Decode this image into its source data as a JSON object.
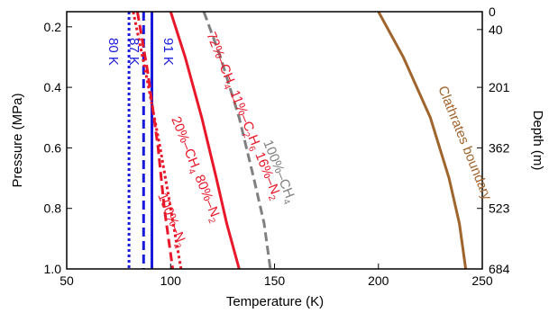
{
  "chart_data": {
    "type": "line",
    "xlabel": "Temperature (K)",
    "ylabel": "Pressure (MPa)",
    "ylabel_right": "Depth (m)",
    "xlim": [
      50,
      250
    ],
    "ylim": [
      0.15,
      1.0
    ],
    "x_ticks": [
      "50",
      "100",
      "150",
      "200",
      "250"
    ],
    "y_ticks": [
      "0.2",
      "0.4",
      "0.6",
      "0.8",
      "1.0"
    ],
    "right_ticks": [
      {
        "p": 0.15,
        "label": "0"
      },
      {
        "p": 0.209,
        "label": "40"
      },
      {
        "p": 0.4,
        "label": "201"
      },
      {
        "p": 0.6,
        "label": "362"
      },
      {
        "p": 0.8,
        "label": "523"
      },
      {
        "p": 1.0,
        "label": "684"
      }
    ],
    "series": [
      {
        "label": "80 K",
        "color": "#1a1adb",
        "dash": "dotted",
        "points": [
          [
            80,
            0.15
          ],
          [
            80,
            1.0
          ]
        ]
      },
      {
        "label": "87 K",
        "color": "#1a1adb",
        "dash": "dashed",
        "points": [
          [
            87,
            0.15
          ],
          [
            87,
            1.0
          ]
        ]
      },
      {
        "label": "91 K",
        "color": "#1a1adb",
        "dash": "solid",
        "points": [
          [
            91,
            0.15
          ],
          [
            91,
            1.0
          ]
        ]
      },
      {
        "label": "100%-N2",
        "color": "#e8182a",
        "dash": "dotted",
        "points": [
          [
            82,
            0.15
          ],
          [
            88,
            0.35
          ],
          [
            95,
            0.6
          ],
          [
            100,
            0.8
          ],
          [
            105,
            1.0
          ]
        ]
      },
      {
        "label": "20%-CH4 80%-N2",
        "color": "#e8182a",
        "dash": "dashed",
        "points": [
          [
            84,
            0.15
          ],
          [
            89,
            0.35
          ],
          [
            94,
            0.6
          ],
          [
            97,
            0.8
          ],
          [
            101,
            1.0
          ]
        ]
      },
      {
        "label": "72%-CH4 11%-C2H6 16%-N2",
        "color": "#e8182a",
        "dash": "solid",
        "points": [
          [
            100,
            0.15
          ],
          [
            107,
            0.3
          ],
          [
            115,
            0.5
          ],
          [
            122,
            0.7
          ],
          [
            127,
            0.85
          ],
          [
            133,
            1.0
          ]
        ]
      },
      {
        "label": "100%-CH4",
        "color": "#808080",
        "dash": "dashed",
        "points": [
          [
            116,
            0.15
          ],
          [
            124,
            0.3
          ],
          [
            133,
            0.5
          ],
          [
            140,
            0.7
          ],
          [
            145,
            0.85
          ],
          [
            148,
            1.0
          ]
        ]
      },
      {
        "label": "Clathrates boundary",
        "color": "#a0642d",
        "dash": "solid",
        "points": [
          [
            200,
            0.15
          ],
          [
            212,
            0.3
          ],
          [
            225,
            0.5
          ],
          [
            234,
            0.7
          ],
          [
            239,
            0.85
          ],
          [
            242,
            1.0
          ]
        ]
      }
    ],
    "annotations": {
      "k80": "80 K",
      "k87": "87 K",
      "k91": "91 K",
      "n2_pct": "100%",
      "n2_dash": "–N",
      "n2_sub": "2",
      "mix_ch4_pct": "20%",
      "mix_ch4_dash": "–CH",
      "mix_ch4_sub": "4",
      "mix_n2_pct": "80%",
      "mix_n2_dash": "–N",
      "mix_n2_sub": "2",
      "ch4_72_pct": "72%",
      "ch4_72_dash": "–CH",
      "ch4_72_sub": "4",
      "c2h6_pct": "11%",
      "c2h6_dash": "–C",
      "c2h6_sub1": "2",
      "c2h6_mid": "H",
      "c2h6_sub2": "6",
      "n2_16_pct": "16%",
      "n2_16_dash": "–N",
      "n2_16_sub": "2",
      "ch4_100_pct": "100%",
      "ch4_100_dash": "–CH",
      "ch4_100_sub": "4",
      "clathrates": "Clathrates boundary"
    }
  }
}
